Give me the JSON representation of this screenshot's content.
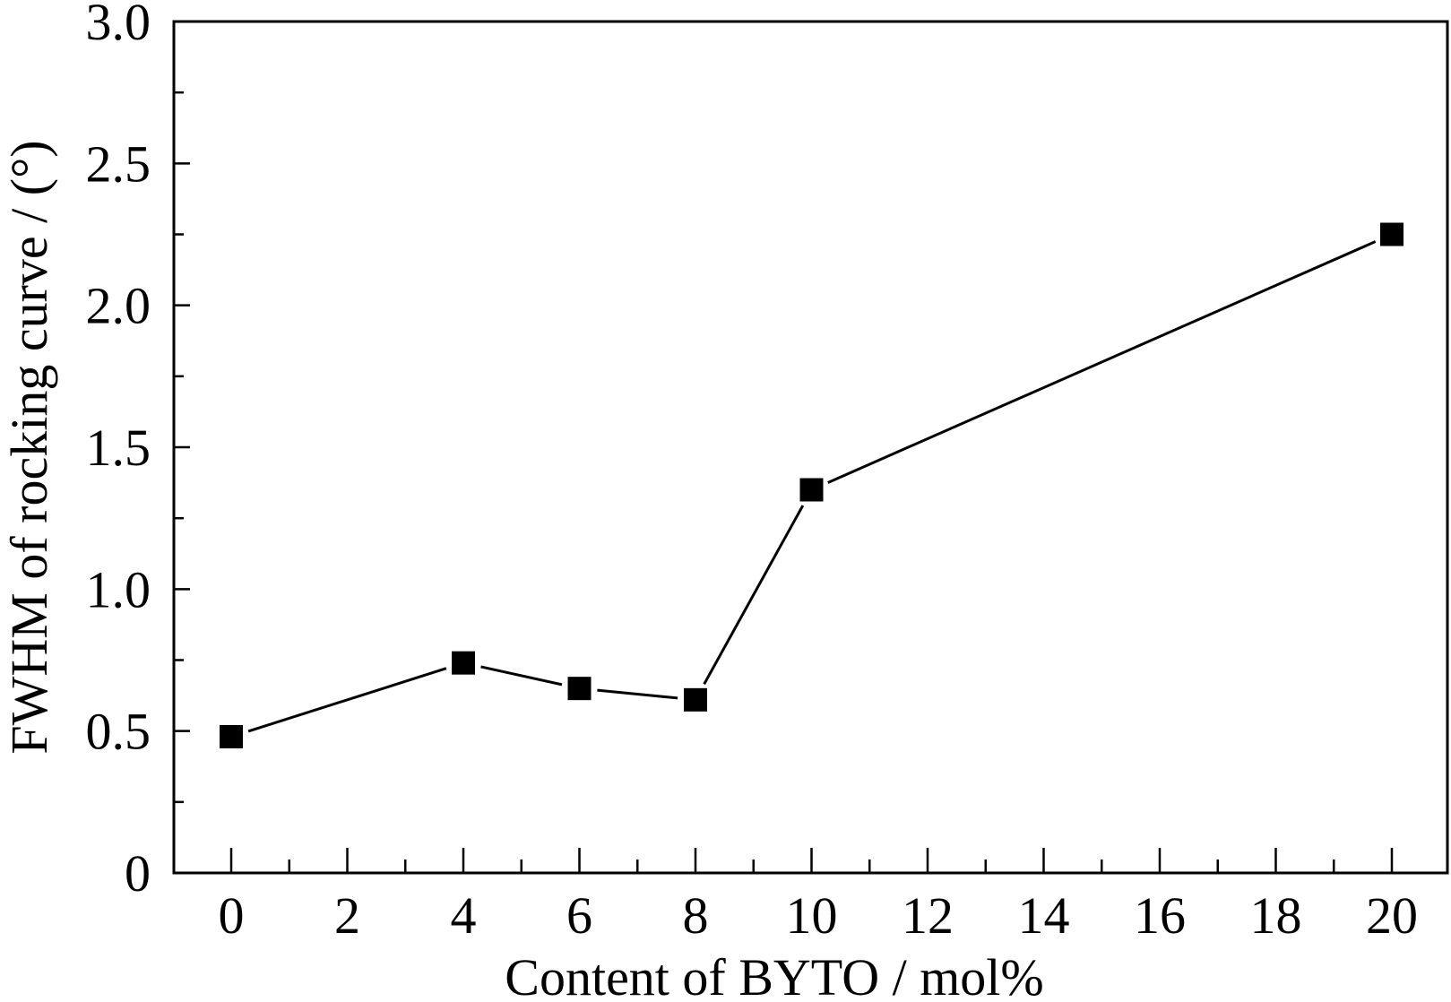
{
  "chart_data": {
    "type": "line",
    "xlabel": "Content of BYTO / mol%",
    "ylabel": "FWHM of rocking curve / (°)",
    "x_ticks": [
      "0",
      "2",
      "4",
      "6",
      "8",
      "10",
      "12",
      "14",
      "16",
      "18",
      "20"
    ],
    "y_ticks": [
      "0",
      "0.5",
      "1.0",
      "1.5",
      "2.0",
      "2.5",
      "3.0"
    ],
    "y_tick_values": [
      0,
      0.5,
      1.0,
      1.5,
      2.0,
      2.5,
      3.0
    ],
    "ylim": [
      0,
      3.0
    ],
    "grid": false,
    "marker": "square",
    "series": [
      {
        "x": [
          0,
          4,
          6,
          8,
          10,
          20
        ],
        "y": [
          0.48,
          0.74,
          0.65,
          0.61,
          1.35,
          2.25
        ]
      }
    ]
  }
}
